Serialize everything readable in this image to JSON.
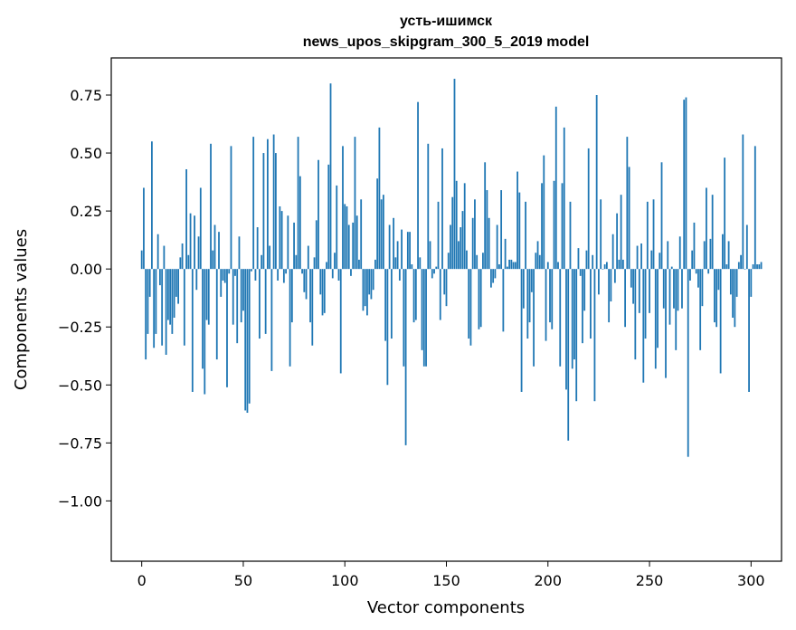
{
  "chart_data": {
    "type": "bar",
    "title": "усть-ишимск",
    "subtitle": "news_upos_skipgram_300_5_2019 model",
    "xlabel": "Vector components",
    "ylabel": "Components values",
    "xlim": [
      -15,
      315
    ],
    "ylim": [
      -1.26,
      0.91
    ],
    "xticks": [
      0,
      50,
      100,
      150,
      200,
      250,
      300
    ],
    "xtick_labels": [
      "0",
      "50",
      "100",
      "150",
      "200",
      "250",
      "300"
    ],
    "yticks": [
      -1.0,
      -0.75,
      -0.5,
      -0.25,
      0.0,
      0.25,
      0.5,
      0.75
    ],
    "ytick_labels": [
      "−1.00",
      "−0.75",
      "−0.50",
      "−0.25",
      "0.00",
      "0.25",
      "0.50",
      "0.75"
    ],
    "bar_color": "#1f77b4",
    "grid": false,
    "values": [
      0.08,
      0.35,
      -0.39,
      -0.28,
      -0.12,
      0.55,
      -0.34,
      -0.28,
      0.15,
      -0.07,
      -0.33,
      0.1,
      -0.37,
      -0.22,
      -0.24,
      -0.28,
      -0.21,
      -0.12,
      -0.15,
      0.05,
      0.11,
      -0.33,
      0.43,
      0.06,
      0.24,
      -0.53,
      0.23,
      -0.09,
      0.14,
      0.35,
      -0.43,
      -0.54,
      -0.22,
      -0.24,
      0.54,
      0.08,
      0.19,
      -0.39,
      0.16,
      -0.12,
      -0.05,
      -0.06,
      -0.51,
      -0.02,
      0.53,
      -0.24,
      -0.03,
      -0.32,
      0.14,
      -0.23,
      -0.18,
      -0.61,
      -0.62,
      -0.58,
      -0.01,
      0.57,
      -0.05,
      0.18,
      -0.3,
      0.06,
      0.5,
      -0.28,
      0.56,
      0.1,
      -0.44,
      0.58,
      0.5,
      -0.05,
      0.27,
      0.25,
      -0.06,
      -0.02,
      0.23,
      -0.42,
      -0.23,
      0.2,
      0.06,
      0.57,
      0.4,
      -0.02,
      -0.1,
      -0.13,
      0.1,
      -0.23,
      -0.33,
      0.05,
      0.21,
      0.47,
      -0.11,
      -0.2,
      -0.19,
      0.03,
      0.45,
      0.8,
      -0.04,
      0.07,
      0.36,
      -0.05,
      -0.45,
      0.53,
      0.28,
      0.27,
      0.19,
      -0.03,
      0.2,
      0.57,
      0.23,
      0.04,
      0.3,
      -0.18,
      -0.16,
      -0.2,
      -0.11,
      -0.13,
      -0.09,
      0.04,
      0.39,
      0.61,
      0.3,
      0.32,
      -0.31,
      -0.5,
      0.19,
      -0.3,
      0.22,
      0.05,
      0.12,
      -0.05,
      0.17,
      -0.42,
      -0.76,
      0.16,
      0.16,
      0.02,
      -0.23,
      -0.22,
      0.72,
      0.05,
      -0.35,
      -0.42,
      -0.42,
      0.54,
      0.12,
      -0.04,
      -0.02,
      0.01,
      0.29,
      -0.22,
      0.52,
      -0.11,
      -0.16,
      0.07,
      0.19,
      0.31,
      0.82,
      0.38,
      0.12,
      0.18,
      0.25,
      0.37,
      0.08,
      -0.3,
      -0.33,
      0.22,
      0.3,
      0.06,
      -0.26,
      -0.25,
      0.07,
      0.46,
      0.34,
      0.22,
      -0.08,
      -0.06,
      -0.04,
      0.19,
      0.02,
      0.34,
      -0.27,
      0.13,
      0.01,
      0.04,
      0.04,
      0.03,
      0.03,
      0.42,
      0.33,
      -0.53,
      -0.17,
      0.29,
      -0.3,
      -0.23,
      -0.1,
      -0.42,
      0.07,
      0.12,
      0.06,
      0.37,
      0.49,
      -0.31,
      0.03,
      -0.23,
      -0.26,
      0.38,
      0.7,
      0.03,
      -0.42,
      0.37,
      0.61,
      -0.52,
      -0.74,
      0.29,
      -0.43,
      -0.39,
      -0.57,
      0.09,
      -0.03,
      -0.32,
      -0.18,
      0.08,
      0.52,
      -0.3,
      0.06,
      -0.57,
      0.75,
      -0.11,
      0.3,
      0.0,
      0.02,
      0.03,
      -0.23,
      -0.14,
      0.15,
      -0.06,
      0.24,
      0.04,
      0.32,
      0.04,
      -0.25,
      0.57,
      0.44,
      -0.08,
      -0.15,
      -0.39,
      0.1,
      -0.19,
      0.11,
      -0.49,
      -0.3,
      0.29,
      -0.19,
      0.08,
      0.3,
      -0.43,
      -0.34,
      0.07,
      0.46,
      -0.17,
      -0.47,
      0.12,
      -0.24,
      0.01,
      -0.17,
      -0.35,
      -0.18,
      0.14,
      -0.17,
      0.73,
      0.74,
      -0.81,
      -0.05,
      0.08,
      0.2,
      -0.02,
      -0.08,
      -0.35,
      -0.16,
      0.12,
      0.35,
      -0.02,
      0.13,
      0.32,
      -0.23,
      -0.25,
      -0.09,
      -0.45,
      0.15,
      0.48,
      0.02,
      0.12,
      -0.11,
      -0.21,
      -0.25,
      -0.12,
      0.03,
      0.06,
      0.58,
      0.0,
      0.19,
      -0.53,
      -0.12,
      0.02,
      0.53,
      0.02,
      0.02,
      0.03
    ]
  }
}
